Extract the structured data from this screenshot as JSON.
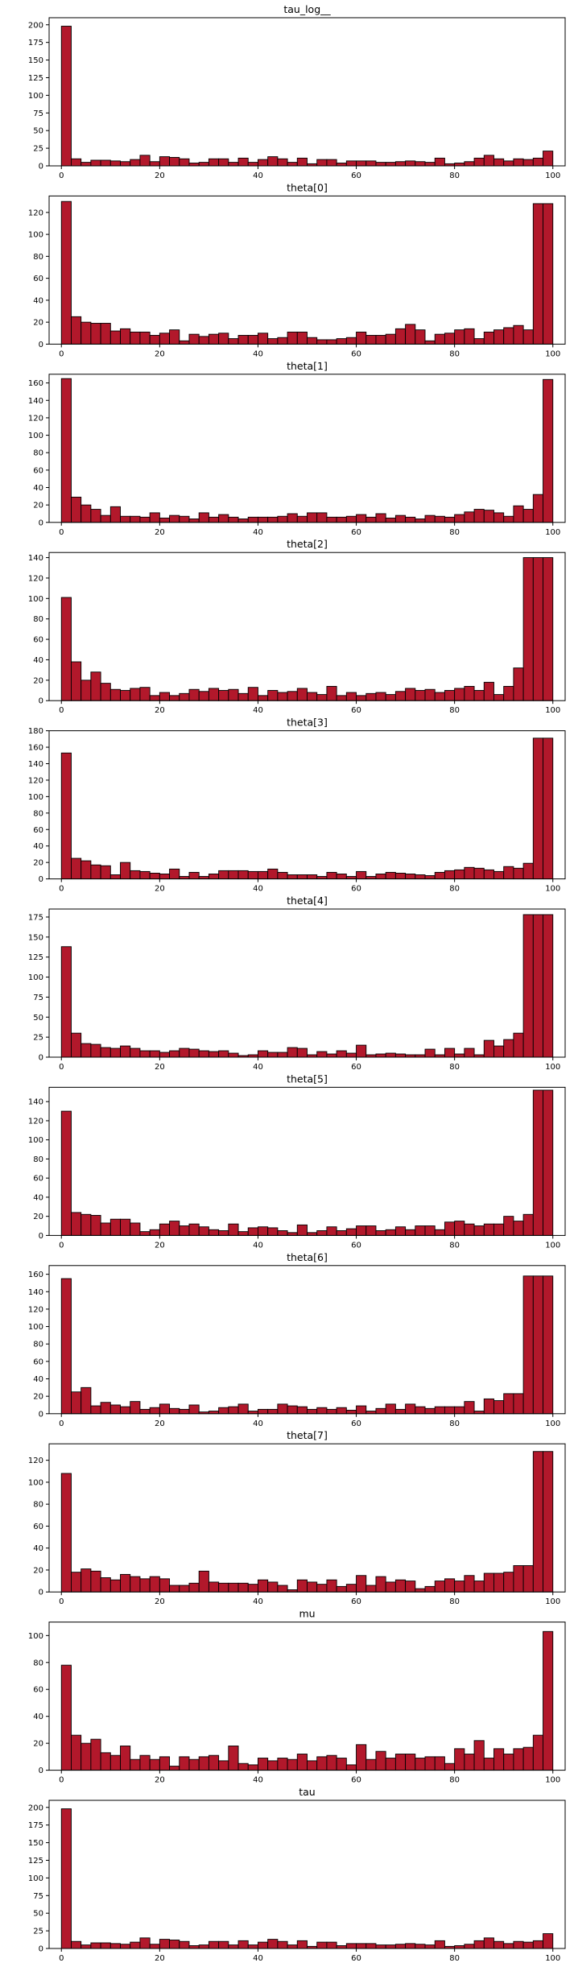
{
  "colors": {
    "bar_fill": "#b2182b",
    "bar_edge": "#000000",
    "axes": "#000000",
    "background": "#ffffff"
  },
  "chart_data": [
    {
      "type": "bar",
      "title": "tau_log__",
      "xlim": [
        -2.5,
        102.5
      ],
      "ylim": [
        0,
        210
      ],
      "x_ticks": [
        0,
        20,
        40,
        60,
        80,
        100
      ],
      "y_ticks": [
        0,
        25,
        50,
        75,
        100,
        125,
        150,
        175,
        200
      ],
      "bin_width": 2,
      "bin_starts": [
        0,
        2,
        4,
        6,
        8,
        10,
        12,
        14,
        16,
        18,
        20,
        22,
        24,
        26,
        28,
        30,
        32,
        34,
        36,
        38,
        40,
        42,
        44,
        46,
        48,
        50,
        52,
        54,
        56,
        58,
        60,
        62,
        64,
        66,
        68,
        70,
        72,
        74,
        76,
        78,
        80,
        82,
        84,
        86,
        88,
        90,
        92,
        94,
        96,
        98
      ],
      "values": [
        198,
        10,
        5,
        8,
        8,
        7,
        6,
        9,
        15,
        6,
        13,
        12,
        10,
        4,
        5,
        10,
        10,
        5,
        11,
        5,
        9,
        13,
        10,
        5,
        11,
        3,
        9,
        9,
        4,
        7,
        7,
        7,
        5,
        5,
        6,
        7,
        6,
        5,
        11,
        3,
        4,
        6,
        11,
        15,
        10,
        7,
        10,
        9,
        11,
        21
      ]
    },
    {
      "type": "bar",
      "title": "theta[0]",
      "xlim": [
        -2.5,
        102.5
      ],
      "ylim": [
        0,
        135
      ],
      "x_ticks": [
        0,
        20,
        40,
        60,
        80,
        100
      ],
      "y_ticks": [
        0,
        20,
        40,
        60,
        80,
        100,
        120
      ],
      "bin_width": 2,
      "bin_starts": [
        0,
        2,
        4,
        6,
        8,
        10,
        12,
        14,
        16,
        18,
        20,
        22,
        24,
        26,
        28,
        30,
        32,
        34,
        36,
        38,
        40,
        42,
        44,
        46,
        48,
        50,
        52,
        54,
        56,
        58,
        60,
        62,
        64,
        66,
        68,
        70,
        72,
        74,
        76,
        78,
        80,
        82,
        84,
        86,
        88,
        90,
        92,
        94,
        96,
        98
      ],
      "values": [
        130,
        25,
        20,
        19,
        19,
        12,
        14,
        11,
        11,
        8,
        10,
        13,
        3,
        9,
        7,
        9,
        10,
        5,
        8,
        8,
        10,
        5,
        6,
        11,
        11,
        6,
        4,
        4,
        5,
        6,
        11,
        8,
        8,
        9,
        14,
        18,
        13,
        3,
        9,
        10,
        13,
        14,
        5,
        11,
        13,
        15,
        17,
        13,
        128,
        128
      ]
    },
    {
      "type": "bar",
      "title": "theta[1]",
      "xlim": [
        -2.5,
        102.5
      ],
      "ylim": [
        0,
        170
      ],
      "x_ticks": [
        0,
        20,
        40,
        60,
        80,
        100
      ],
      "y_ticks": [
        0,
        20,
        40,
        60,
        80,
        100,
        120,
        140,
        160
      ],
      "bin_width": 2,
      "bin_starts": [
        0,
        2,
        4,
        6,
        8,
        10,
        12,
        14,
        16,
        18,
        20,
        22,
        24,
        26,
        28,
        30,
        32,
        34,
        36,
        38,
        40,
        42,
        44,
        46,
        48,
        50,
        52,
        54,
        56,
        58,
        60,
        62,
        64,
        66,
        68,
        70,
        72,
        74,
        76,
        78,
        80,
        82,
        84,
        86,
        88,
        90,
        92,
        94,
        96,
        98
      ],
      "values": [
        165,
        29,
        20,
        15,
        8,
        18,
        7,
        7,
        6,
        11,
        5,
        8,
        7,
        4,
        11,
        6,
        9,
        6,
        4,
        6,
        6,
        6,
        7,
        10,
        7,
        11,
        11,
        6,
        6,
        7,
        9,
        6,
        10,
        5,
        8,
        6,
        4,
        8,
        7,
        6,
        9,
        12,
        15,
        14,
        11,
        7,
        19,
        15,
        32,
        164
      ]
    },
    {
      "type": "bar",
      "title": "theta[2]",
      "xlim": [
        -2.5,
        102.5
      ],
      "ylim": [
        0,
        145
      ],
      "x_ticks": [
        0,
        20,
        40,
        60,
        80,
        100
      ],
      "y_ticks": [
        0,
        20,
        40,
        60,
        80,
        100,
        120,
        140
      ],
      "bin_width": 2,
      "bin_starts": [
        0,
        2,
        4,
        6,
        8,
        10,
        12,
        14,
        16,
        18,
        20,
        22,
        24,
        26,
        28,
        30,
        32,
        34,
        36,
        38,
        40,
        42,
        44,
        46,
        48,
        50,
        52,
        54,
        56,
        58,
        60,
        62,
        64,
        66,
        68,
        70,
        72,
        74,
        76,
        78,
        80,
        82,
        84,
        86,
        88,
        90,
        92,
        94,
        96,
        98
      ],
      "values": [
        101,
        38,
        20,
        28,
        17,
        11,
        10,
        12,
        13,
        5,
        8,
        5,
        7,
        11,
        9,
        12,
        10,
        11,
        7,
        13,
        5,
        10,
        8,
        9,
        12,
        8,
        6,
        14,
        5,
        8,
        5,
        7,
        8,
        6,
        9,
        12,
        10,
        11,
        8,
        10,
        12,
        14,
        10,
        18,
        6,
        14,
        32,
        140,
        140,
        140
      ]
    },
    {
      "type": "bar",
      "title": "theta[3]",
      "xlim": [
        -2.5,
        102.5
      ],
      "ylim": [
        0,
        180
      ],
      "x_ticks": [
        0,
        20,
        40,
        60,
        80,
        100
      ],
      "y_ticks": [
        0,
        20,
        40,
        60,
        80,
        100,
        120,
        140,
        160,
        180
      ],
      "bin_width": 2,
      "bin_starts": [
        0,
        2,
        4,
        6,
        8,
        10,
        12,
        14,
        16,
        18,
        20,
        22,
        24,
        26,
        28,
        30,
        32,
        34,
        36,
        38,
        40,
        42,
        44,
        46,
        48,
        50,
        52,
        54,
        56,
        58,
        60,
        62,
        64,
        66,
        68,
        70,
        72,
        74,
        76,
        78,
        80,
        82,
        84,
        86,
        88,
        90,
        92,
        94,
        96,
        98
      ],
      "values": [
        153,
        25,
        22,
        17,
        16,
        5,
        20,
        10,
        9,
        7,
        6,
        12,
        3,
        8,
        3,
        6,
        10,
        10,
        10,
        9,
        9,
        12,
        8,
        5,
        5,
        5,
        3,
        8,
        6,
        3,
        9,
        3,
        6,
        8,
        7,
        6,
        5,
        4,
        8,
        10,
        11,
        14,
        13,
        11,
        9,
        15,
        13,
        19,
        171,
        171
      ]
    },
    {
      "type": "bar",
      "title": "theta[4]",
      "xlim": [
        -2.5,
        102.5
      ],
      "ylim": [
        0,
        185
      ],
      "x_ticks": [
        0,
        20,
        40,
        60,
        80,
        100
      ],
      "y_ticks": [
        0,
        25,
        50,
        75,
        100,
        125,
        150,
        175
      ],
      "bin_width": 2,
      "bin_starts": [
        0,
        2,
        4,
        6,
        8,
        10,
        12,
        14,
        16,
        18,
        20,
        22,
        24,
        26,
        28,
        30,
        32,
        34,
        36,
        38,
        40,
        42,
        44,
        46,
        48,
        50,
        52,
        54,
        56,
        58,
        60,
        62,
        64,
        66,
        68,
        70,
        72,
        74,
        76,
        78,
        80,
        82,
        84,
        86,
        88,
        90,
        92,
        94,
        96,
        98
      ],
      "values": [
        138,
        30,
        17,
        16,
        12,
        11,
        14,
        11,
        8,
        8,
        6,
        8,
        11,
        10,
        8,
        7,
        8,
        5,
        2,
        3,
        8,
        6,
        6,
        12,
        11,
        3,
        7,
        4,
        8,
        5,
        15,
        3,
        4,
        5,
        4,
        3,
        3,
        10,
        3,
        11,
        4,
        11,
        3,
        21,
        14,
        22,
        30,
        178,
        178,
        178
      ]
    },
    {
      "type": "bar",
      "title": "theta[5]",
      "xlim": [
        -2.5,
        102.5
      ],
      "ylim": [
        0,
        155
      ],
      "x_ticks": [
        0,
        20,
        40,
        60,
        80,
        100
      ],
      "y_ticks": [
        0,
        20,
        40,
        60,
        80,
        100,
        120,
        140
      ],
      "bin_width": 2,
      "bin_starts": [
        0,
        2,
        4,
        6,
        8,
        10,
        12,
        14,
        16,
        18,
        20,
        22,
        24,
        26,
        28,
        30,
        32,
        34,
        36,
        38,
        40,
        42,
        44,
        46,
        48,
        50,
        52,
        54,
        56,
        58,
        60,
        62,
        64,
        66,
        68,
        70,
        72,
        74,
        76,
        78,
        80,
        82,
        84,
        86,
        88,
        90,
        92,
        94,
        96,
        98
      ],
      "values": [
        130,
        24,
        22,
        21,
        13,
        17,
        17,
        13,
        4,
        6,
        12,
        15,
        10,
        12,
        9,
        6,
        5,
        12,
        4,
        8,
        9,
        8,
        5,
        3,
        11,
        3,
        5,
        9,
        5,
        7,
        10,
        10,
        5,
        6,
        9,
        6,
        10,
        10,
        6,
        14,
        15,
        12,
        10,
        12,
        12,
        20,
        15,
        22,
        152,
        152
      ]
    },
    {
      "type": "bar",
      "title": "theta[6]",
      "xlim": [
        -2.5,
        102.5
      ],
      "ylim": [
        0,
        170
      ],
      "x_ticks": [
        0,
        20,
        40,
        60,
        80,
        100
      ],
      "y_ticks": [
        0,
        20,
        40,
        60,
        80,
        100,
        120,
        140,
        160
      ],
      "bin_width": 2,
      "bin_starts": [
        0,
        2,
        4,
        6,
        8,
        10,
        12,
        14,
        16,
        18,
        20,
        22,
        24,
        26,
        28,
        30,
        32,
        34,
        36,
        38,
        40,
        42,
        44,
        46,
        48,
        50,
        52,
        54,
        56,
        58,
        60,
        62,
        64,
        66,
        68,
        70,
        72,
        74,
        76,
        78,
        80,
        82,
        84,
        86,
        88,
        90,
        92,
        94,
        96,
        98
      ],
      "values": [
        155,
        25,
        30,
        9,
        13,
        10,
        8,
        14,
        5,
        7,
        11,
        6,
        5,
        10,
        2,
        3,
        7,
        8,
        11,
        3,
        5,
        5,
        11,
        9,
        8,
        5,
        7,
        5,
        7,
        4,
        9,
        3,
        6,
        11,
        5,
        11,
        8,
        6,
        8,
        8,
        8,
        14,
        3,
        17,
        15,
        23,
        23,
        158,
        158,
        158
      ]
    },
    {
      "type": "bar",
      "title": "theta[7]",
      "xlim": [
        -2.5,
        102.5
      ],
      "ylim": [
        0,
        135
      ],
      "x_ticks": [
        0,
        20,
        40,
        60,
        80,
        100
      ],
      "y_ticks": [
        0,
        20,
        40,
        60,
        80,
        100,
        120
      ],
      "bin_width": 2,
      "bin_starts": [
        0,
        2,
        4,
        6,
        8,
        10,
        12,
        14,
        16,
        18,
        20,
        22,
        24,
        26,
        28,
        30,
        32,
        34,
        36,
        38,
        40,
        42,
        44,
        46,
        48,
        50,
        52,
        54,
        56,
        58,
        60,
        62,
        64,
        66,
        68,
        70,
        72,
        74,
        76,
        78,
        80,
        82,
        84,
        86,
        88,
        90,
        92,
        94,
        96,
        98
      ],
      "values": [
        108,
        18,
        21,
        19,
        13,
        11,
        16,
        14,
        12,
        14,
        12,
        6,
        6,
        8,
        19,
        9,
        8,
        8,
        8,
        7,
        11,
        9,
        6,
        2,
        11,
        9,
        7,
        11,
        5,
        7,
        15,
        6,
        14,
        9,
        11,
        10,
        3,
        5,
        10,
        12,
        10,
        15,
        10,
        17,
        17,
        18,
        24,
        24,
        128,
        128
      ]
    },
    {
      "type": "bar",
      "title": "mu",
      "xlim": [
        -2.5,
        102.5
      ],
      "ylim": [
        0,
        110
      ],
      "x_ticks": [
        0,
        20,
        40,
        60,
        80,
        100
      ],
      "y_ticks": [
        0,
        20,
        40,
        60,
        80,
        100
      ],
      "bin_width": 2,
      "bin_starts": [
        0,
        2,
        4,
        6,
        8,
        10,
        12,
        14,
        16,
        18,
        20,
        22,
        24,
        26,
        28,
        30,
        32,
        34,
        36,
        38,
        40,
        42,
        44,
        46,
        48,
        50,
        52,
        54,
        56,
        58,
        60,
        62,
        64,
        66,
        68,
        70,
        72,
        74,
        76,
        78,
        80,
        82,
        84,
        86,
        88,
        90,
        92,
        94,
        96,
        98
      ],
      "values": [
        78,
        26,
        20,
        23,
        13,
        11,
        18,
        8,
        11,
        8,
        10,
        3,
        10,
        8,
        10,
        11,
        7,
        18,
        5,
        4,
        9,
        7,
        9,
        8,
        12,
        7,
        10,
        11,
        9,
        4,
        19,
        8,
        14,
        9,
        12,
        12,
        9,
        10,
        10,
        5,
        16,
        12,
        22,
        9,
        16,
        12,
        16,
        17,
        26,
        103
      ]
    },
    {
      "type": "bar",
      "title": "tau",
      "xlim": [
        -2.5,
        102.5
      ],
      "ylim": [
        0,
        210
      ],
      "x_ticks": [
        0,
        20,
        40,
        60,
        80,
        100
      ],
      "y_ticks": [
        0,
        25,
        50,
        75,
        100,
        125,
        150,
        175,
        200
      ],
      "bin_width": 2,
      "bin_starts": [
        0,
        2,
        4,
        6,
        8,
        10,
        12,
        14,
        16,
        18,
        20,
        22,
        24,
        26,
        28,
        30,
        32,
        34,
        36,
        38,
        40,
        42,
        44,
        46,
        48,
        50,
        52,
        54,
        56,
        58,
        60,
        62,
        64,
        66,
        68,
        70,
        72,
        74,
        76,
        78,
        80,
        82,
        84,
        86,
        88,
        90,
        92,
        94,
        96,
        98
      ],
      "values": [
        198,
        10,
        5,
        8,
        8,
        7,
        6,
        9,
        15,
        6,
        13,
        12,
        10,
        4,
        5,
        10,
        10,
        5,
        11,
        5,
        9,
        13,
        10,
        5,
        11,
        3,
        9,
        9,
        4,
        7,
        7,
        7,
        5,
        5,
        6,
        7,
        6,
        5,
        11,
        3,
        4,
        6,
        11,
        15,
        10,
        7,
        10,
        9,
        11,
        21
      ]
    }
  ]
}
